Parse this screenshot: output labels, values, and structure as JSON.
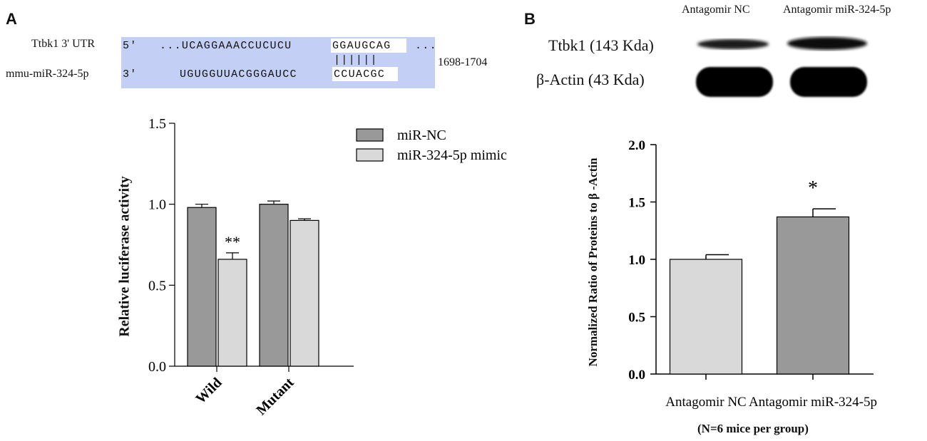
{
  "panel_a": {
    "label": "A",
    "sequence": {
      "utr_label": "Ttbk1 3' UTR",
      "utr_prime": "5'",
      "utr_seq": "...UCAGGAAACCUCUCU",
      "utr_seed": "GGAUGCAG",
      "utr_tail": "...",
      "pairing": "||||||",
      "mir_label": "mmu-miR-324-5p",
      "mir_prime": "3'",
      "mir_seq": "UGUGGUUACGGGAUCC",
      "mir_seed": "CCUACGC",
      "position": "1698-1704",
      "box_color": "#c3cff4"
    }
  },
  "panel_b": {
    "label": "B",
    "blot": {
      "lanes": [
        "Antagomir NC",
        "Antagomir miR-324-5p"
      ],
      "rows": [
        "Ttbk1 (143 Kda)",
        "β-Actin (43 Kda)"
      ]
    },
    "footnote": "(N=6 mice per group)"
  },
  "chart_data": [
    {
      "type": "bar",
      "categories": [
        "Wild",
        "Mutant"
      ],
      "series": [
        {
          "name": "miR-NC",
          "values": [
            0.98,
            1.0
          ],
          "errors": [
            0.02,
            0.02
          ],
          "color": "#999999"
        },
        {
          "name": "miR-324-5p mimic",
          "values": [
            0.66,
            0.9
          ],
          "errors": [
            0.04,
            0.01
          ],
          "color": "#d9d9d9"
        }
      ],
      "annotations": [
        {
          "category": "Wild",
          "series": "miR-324-5p mimic",
          "text": "**"
        }
      ],
      "ylabel": "Relative luciferase activity",
      "ylim": [
        0,
        1.5
      ],
      "yticks": [
        "0.0",
        "0.5",
        "1.0",
        "1.5"
      ],
      "legend": "top-right",
      "grid": false
    },
    {
      "type": "bar",
      "categories": [
        "Antagomir NC",
        "Antagomir miR-324-5p"
      ],
      "values": [
        1.0,
        1.37
      ],
      "errors": [
        0.04,
        0.07
      ],
      "colors": [
        "#d9d9d9",
        "#999999"
      ],
      "annotations": [
        {
          "category": "Antagomir miR-324-5p",
          "text": "*"
        }
      ],
      "ylabel": "Normalized Ratio of  Proteins to β -Actin",
      "ylim": [
        0,
        2.0
      ],
      "yticks": [
        "0.0",
        "0.5",
        "1.0",
        "1.5",
        "2.0"
      ],
      "grid": false
    }
  ]
}
